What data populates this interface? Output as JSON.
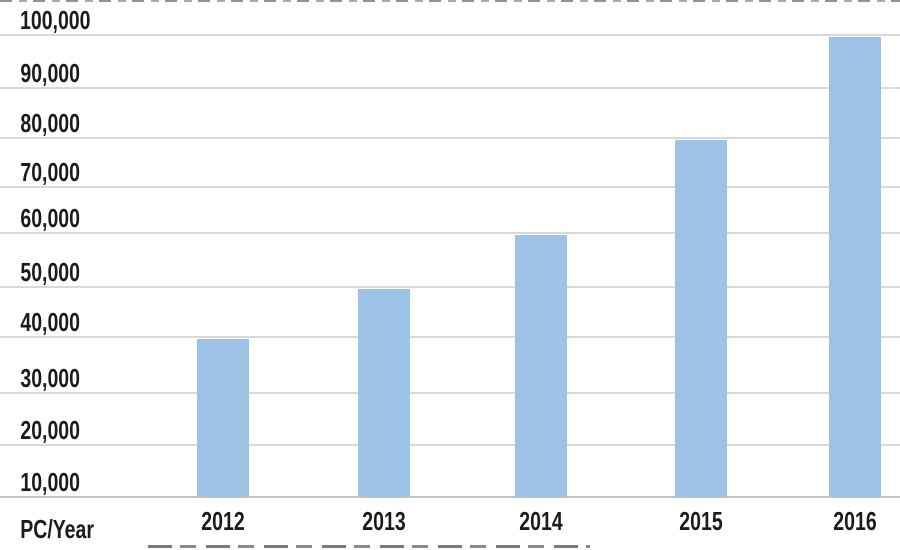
{
  "chart_data": {
    "type": "bar",
    "title": "",
    "categories": [
      "2012",
      "2013",
      "2014",
      "2015",
      "2016"
    ],
    "values": [
      40000,
      50000,
      60000,
      80000,
      100000
    ],
    "xlabel": "",
    "ylabel": "PC/Year",
    "y_axis": {
      "min": 10000,
      "max": 100000,
      "tick_interval": 10000,
      "baseline_value": 10000,
      "tick_labels": [
        "10,000",
        "20,000",
        "30,000",
        "40,000",
        "50,000",
        "60,000",
        "70,000",
        "80,000",
        "90,000",
        "100,000"
      ]
    },
    "legend": "none",
    "grid": "horizontal",
    "colors": {
      "bar_fill": "#9CC2E5",
      "gridline": "#D9D9D9",
      "axis_line": "#C3C3C3",
      "text": "#1B1B1B"
    }
  }
}
